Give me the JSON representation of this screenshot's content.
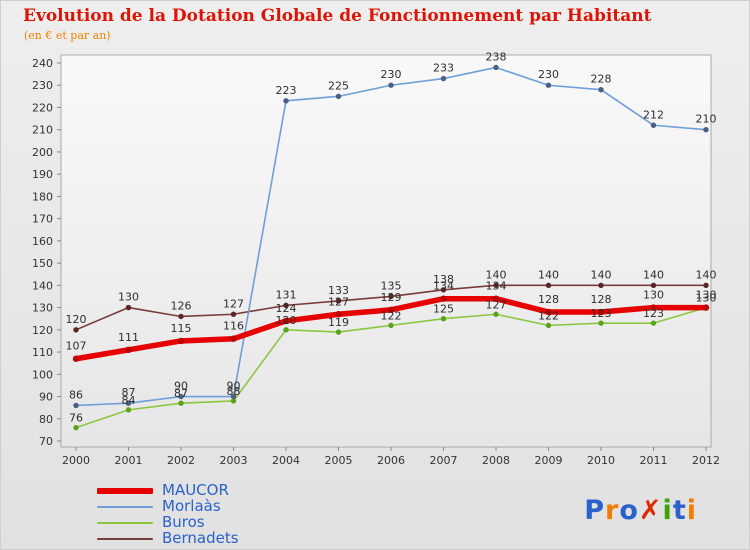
{
  "title": "Evolution de la Dotation Globale de Fonctionnement par Habitant",
  "subtitle": "(en € et par an)",
  "colors": {
    "title": "#dd1404",
    "subtitle": "#ef8200",
    "legend_text": "#2a62c9",
    "axis_text": "#333333",
    "plot_border": "#aaaaaa",
    "plot_bg_top": "#f9f9f9",
    "plot_bg_bottom": "#e6e6e6"
  },
  "chart_data": {
    "type": "line",
    "title": "Evolution de la Dotation Globale de Fonctionnement par Habitant",
    "subtitle": "(en € et par an)",
    "x": [
      2000,
      2001,
      2002,
      2003,
      2004,
      2005,
      2006,
      2007,
      2008,
      2009,
      2010,
      2011,
      2012
    ],
    "ylim": [
      70,
      240
    ],
    "ytick_step": 10,
    "grid": false,
    "legend_position": "bottom-left",
    "series": [
      {
        "name": "MAUCOR",
        "color": "#e60000",
        "marker": "#bb0000",
        "width": 5.5,
        "values": [
          107,
          111,
          115,
          116,
          124,
          127,
          129,
          134,
          134,
          128,
          128,
          130,
          130
        ]
      },
      {
        "name": "Morlaàs",
        "color": "#6f9fd8",
        "marker": "#4a5f85",
        "width": 1.6,
        "values": [
          86,
          87,
          90,
          90,
          223,
          225,
          230,
          233,
          238,
          230,
          228,
          212,
          210
        ]
      },
      {
        "name": "Buros",
        "color": "#8cc63f",
        "marker": "#5ba31e",
        "width": 1.6,
        "values": [
          76,
          84,
          87,
          88,
          120,
          119,
          122,
          125,
          127,
          122,
          123,
          123,
          130
        ]
      },
      {
        "name": "Bernadets",
        "color": "#7a3b3b",
        "marker": "#5a2525",
        "width": 1.6,
        "values": [
          120,
          130,
          126,
          127,
          131,
          133,
          135,
          138,
          140,
          140,
          140,
          140,
          140
        ]
      }
    ]
  },
  "logo": {
    "name": "Proxiti",
    "letters": [
      {
        "ch": "P",
        "color": "#2a62c9"
      },
      {
        "ch": "r",
        "color": "#f07d05"
      },
      {
        "ch": "o",
        "color": "#2a62c9"
      },
      {
        "ch": "✗",
        "color": "#e02800"
      },
      {
        "ch": "i",
        "color": "#3fa00a"
      },
      {
        "ch": "t",
        "color": "#2a62c9"
      },
      {
        "ch": "i",
        "color": "#f07d05"
      }
    ]
  }
}
